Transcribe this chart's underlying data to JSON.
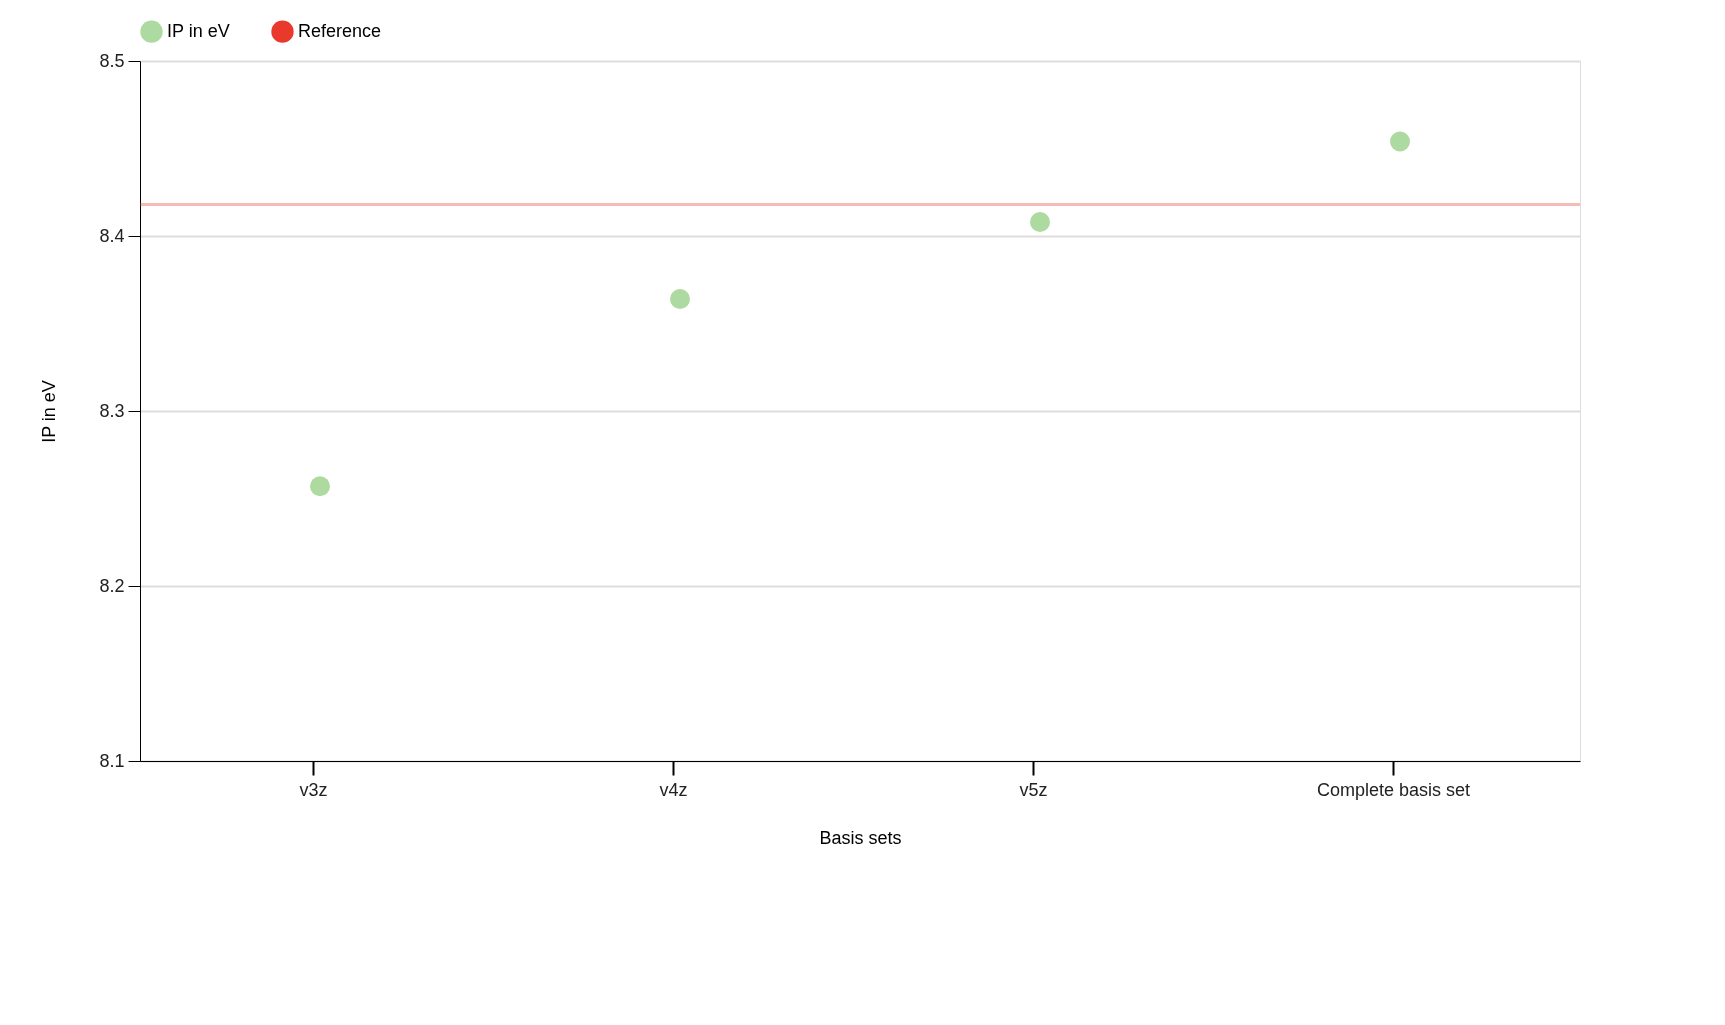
{
  "chart_data": {
    "type": "scatter",
    "xlabel": "Basis sets",
    "ylabel": "IP in eV",
    "categories": [
      "v3z",
      "v4z",
      "v5z",
      "Complete basis set"
    ],
    "series": [
      {
        "name": "IP in eV",
        "color": "#addaa0",
        "values": [
          8.257,
          8.364,
          8.408,
          8.454
        ]
      }
    ],
    "ref_lines": [
      {
        "axis": "y",
        "value": 8.418,
        "label": "Reference",
        "color": "#e8392c"
      }
    ],
    "ylim": [
      8.1,
      8.5
    ],
    "yticks": [
      8.1,
      8.2,
      8.3,
      8.4,
      8.5
    ],
    "grid": "y",
    "legend": "top",
    "marker": "circle"
  }
}
